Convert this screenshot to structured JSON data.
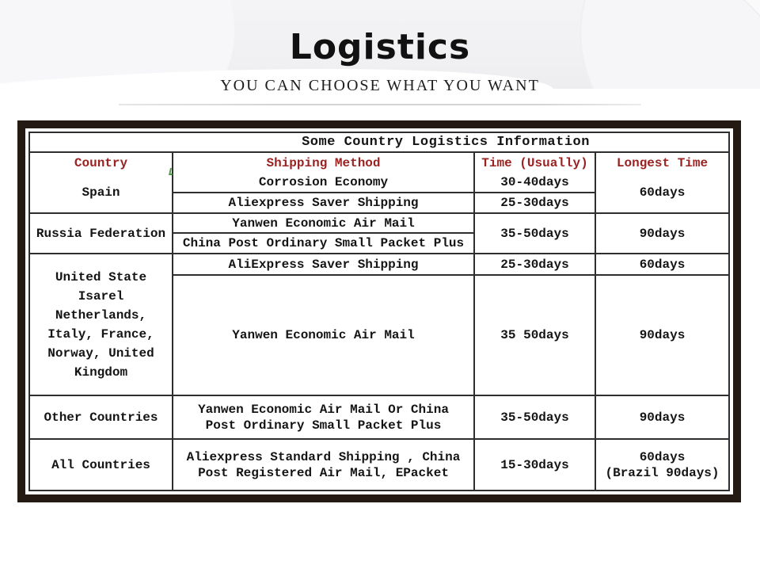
{
  "colors": {
    "accent": "#9b2222",
    "frame": "#241a13",
    "grid-line": "#2e2e2e",
    "band": "#f0f0f2"
  },
  "header": {
    "title": "Logistics",
    "subtitle": "YOU CAN CHOOSE WHAT YOU WANT"
  },
  "table": {
    "title": "Some Country Logistics Information",
    "headers": {
      "country": "Country",
      "method": "Shipping Method",
      "time": "Time (Usually)",
      "longest": "Longest Time"
    },
    "groups": [
      {
        "country": "Spain",
        "longest": "60days",
        "rows": [
          {
            "method": "Corrosion Economy",
            "time": "30-40days"
          },
          {
            "method": "Aliexpress Saver Shipping",
            "time": "25-30days"
          }
        ]
      },
      {
        "country": "Russia Federation",
        "time": "35-50days",
        "longest": "90days",
        "rows": [
          {
            "method": "Yanwen Economic Air Mail"
          },
          {
            "method": "China Post Ordinary Small Packet Plus"
          }
        ]
      },
      {
        "country": "United State\nIsarel\nNetherlands,\nItaly, France,\nNorway, United\nKingdom",
        "rows": [
          {
            "method": "AliExpress Saver Shipping",
            "time": "25-30days",
            "longest": "60days"
          },
          {
            "method": "Yanwen Economic Air Mail",
            "time": "35 50days",
            "longest": "90days"
          }
        ]
      },
      {
        "country": "Other Countries",
        "method": "Yanwen Economic Air Mail Or China\nPost Ordinary Small Packet Plus",
        "time": "35-50days",
        "longest": "90days"
      },
      {
        "country": "All Countries",
        "method": "Aliexpress Standard Shipping , China\nPost Registered Air Mail, EPacket",
        "time": "15-30days",
        "longest": "60days\n(Brazil 90days)"
      }
    ]
  }
}
